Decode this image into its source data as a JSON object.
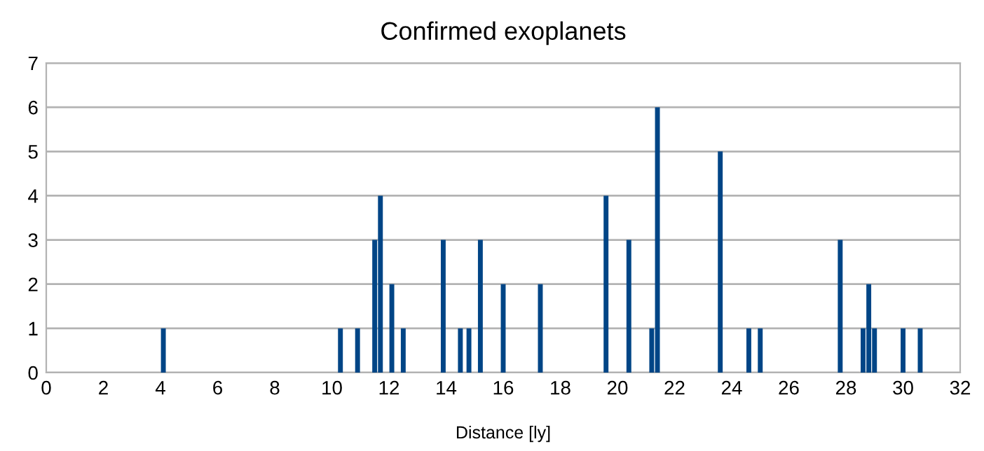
{
  "chart_data": {
    "type": "bar",
    "title": "Confirmed exoplanets",
    "xlabel": "Distance [ly]",
    "x": [
      4.1,
      10.3,
      10.9,
      11.5,
      11.7,
      12.1,
      12.5,
      13.9,
      14.5,
      14.8,
      15.2,
      16.0,
      17.3,
      19.6,
      20.4,
      21.2,
      21.4,
      23.6,
      24.6,
      25.0,
      27.8,
      28.6,
      28.8,
      29.0,
      30.0,
      30.6
    ],
    "values": [
      1,
      1,
      1,
      3,
      4,
      2,
      1,
      3,
      1,
      1,
      3,
      2,
      2,
      4,
      3,
      1,
      6,
      5,
      1,
      1,
      3,
      1,
      2,
      1,
      1,
      1
    ],
    "color": "#004586",
    "xlim": [
      0,
      32
    ],
    "xticks": [
      0,
      2,
      4,
      6,
      8,
      10,
      12,
      14,
      16,
      18,
      20,
      22,
      24,
      26,
      28,
      30,
      32
    ],
    "ylim": [
      0,
      7
    ],
    "yticks": [
      0,
      1,
      2,
      3,
      4,
      5,
      6,
      7
    ],
    "grid": "y",
    "legend": false
  }
}
